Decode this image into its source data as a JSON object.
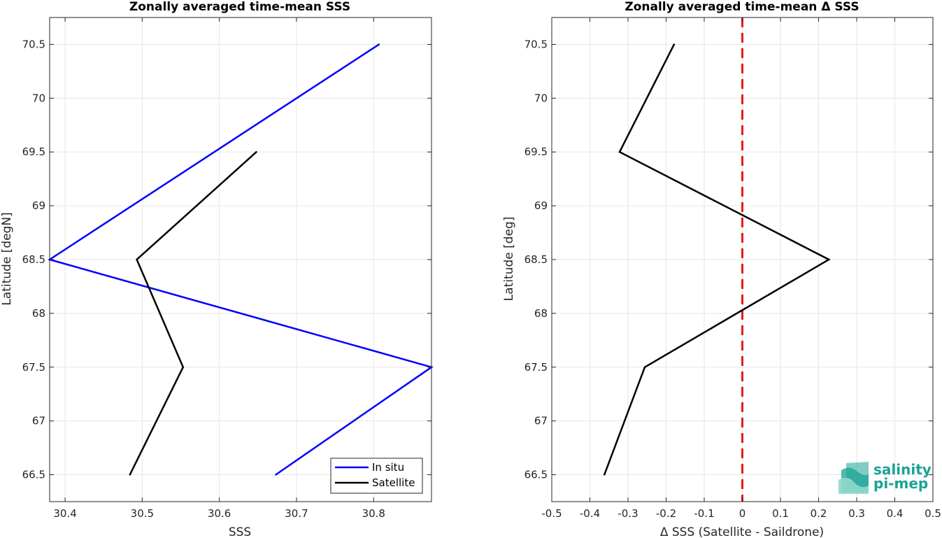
{
  "chart_data": [
    {
      "type": "line",
      "title": "Zonally averaged time-mean SSS",
      "xlabel": "SSS",
      "ylabel": "Latitude [degN]",
      "xlim": [
        30.38,
        30.875
      ],
      "ylim": [
        66.25,
        70.75
      ],
      "xticks": [
        30.4,
        30.5,
        30.6,
        30.7,
        30.8
      ],
      "xtick_labels": [
        "30.4",
        "30.5",
        "30.6",
        "30.7",
        "30.8"
      ],
      "yticks": [
        66.5,
        67,
        67.5,
        68,
        68.5,
        69,
        69.5,
        70,
        70.5
      ],
      "ytick_labels": [
        "66.5",
        "67",
        "67.5",
        "68",
        "68.5",
        "69",
        "69.5",
        "70",
        "70.5"
      ],
      "grid": true,
      "legend": "bottom-right",
      "series": [
        {
          "name": "In situ",
          "color": "#0000ff",
          "x": [
            30.673,
            30.875,
            30.38,
            30.807
          ],
          "y": [
            66.5,
            67.5,
            68.5,
            70.5
          ]
        },
        {
          "name": "Satellite",
          "color": "#000000",
          "x": [
            30.484,
            30.553,
            30.493,
            30.648
          ],
          "y": [
            66.5,
            67.5,
            68.5,
            69.5
          ]
        }
      ]
    },
    {
      "type": "line",
      "title": "Zonally averaged time-mean Δ SSS",
      "xlabel": "Δ SSS (Satellite - Saildrone)",
      "ylabel": "Latitude [deg]",
      "xlim": [
        -0.5,
        0.5
      ],
      "ylim": [
        66.25,
        70.75
      ],
      "xticks": [
        -0.5,
        -0.4,
        -0.3,
        -0.2,
        -0.1,
        0,
        0.1,
        0.2,
        0.3,
        0.4,
        0.5
      ],
      "xtick_labels": [
        "-0.5",
        "-0.4",
        "-0.3",
        "-0.2",
        "-0.1",
        "0",
        "0.1",
        "0.2",
        "0.3",
        "0.4",
        "0.5"
      ],
      "yticks": [
        66.5,
        67,
        67.5,
        68,
        68.5,
        69,
        69.5,
        70,
        70.5
      ],
      "ytick_labels": [
        "66.5",
        "67",
        "67.5",
        "68",
        "68.5",
        "69",
        "69.5",
        "70",
        "70.5"
      ],
      "grid": true,
      "reference_line": {
        "x": 0,
        "color": "#e31a1c",
        "style": "dashed"
      },
      "series": [
        {
          "color": "#000000",
          "x": [
            -0.362,
            -0.256,
            0.227,
            -0.322,
            -0.179
          ],
          "y": [
            66.5,
            67.5,
            68.5,
            69.5,
            70.5
          ]
        }
      ]
    }
  ],
  "logo": {
    "line1": "salinity",
    "line2": "pi-mep",
    "color": "#1aa394"
  }
}
